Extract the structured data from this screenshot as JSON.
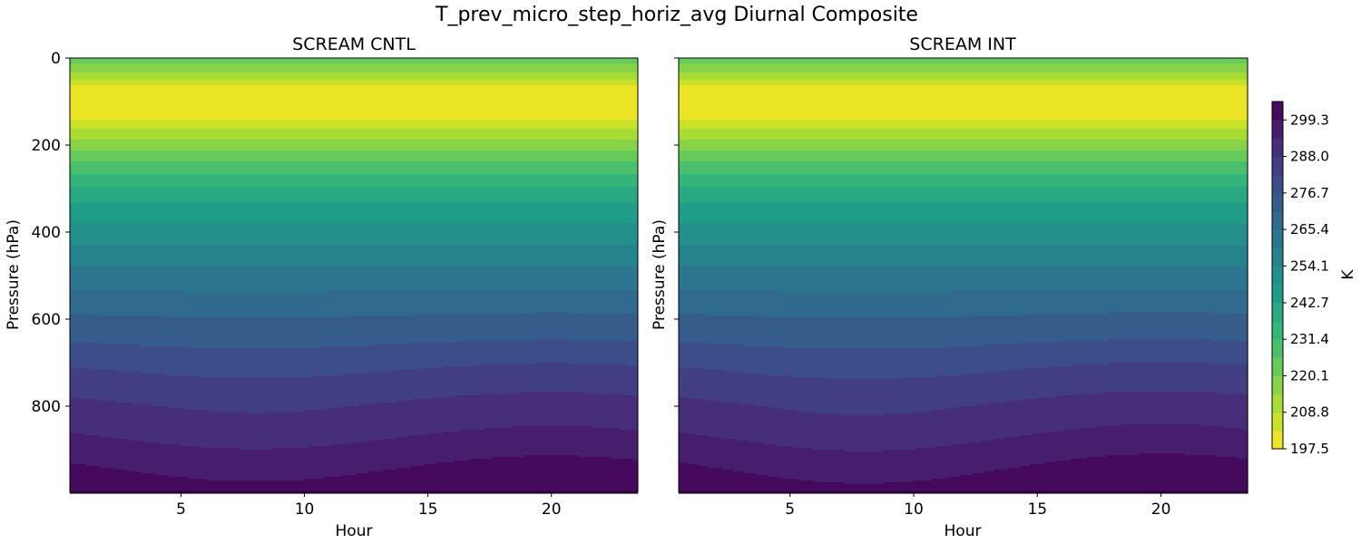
{
  "chart_data": {
    "type": "contourf",
    "title": "T_prev_micro_step_horiz_avg Diurnal Composite",
    "panels": [
      {
        "title": "SCREAM CNTL",
        "xlabel": "Hour",
        "ylabel": "Pressure (hPa)",
        "diurnal_scale": 1.0,
        "show_y_ticklabels": true
      },
      {
        "title": "SCREAM INT",
        "xlabel": "Hour",
        "ylabel": "Pressure (hPa)",
        "diurnal_scale": 1.15,
        "show_y_ticklabels": false
      }
    ],
    "xlim": [
      0.5,
      23.5
    ],
    "ylim": [
      998,
      0
    ],
    "xticks": [
      5,
      10,
      15,
      20
    ],
    "yticks": [
      0,
      200,
      400,
      600,
      800
    ],
    "pressure": [
      0,
      20,
      40,
      60,
      80,
      100,
      130,
      160,
      200,
      250,
      300,
      350,
      400,
      450,
      500,
      550,
      600,
      650,
      700,
      750,
      800,
      850,
      900,
      950,
      1000
    ],
    "mean_temperature": [
      224,
      218,
      212,
      204,
      199,
      198,
      200,
      208,
      218,
      228,
      238,
      245,
      251,
      256,
      262,
      267,
      272,
      276,
      281,
      285,
      289,
      292,
      296,
      300,
      304
    ],
    "diurnal_amplitude": [
      0,
      0,
      0,
      0,
      0,
      0,
      0,
      0,
      0,
      0,
      0,
      0,
      0,
      0,
      0,
      0.3,
      0.6,
      0.9,
      1.2,
      1.5,
      1.8,
      2.0,
      2.2,
      2.4,
      2.6
    ],
    "diurnal_peak_hour": 20,
    "colorbar": {
      "label": "K",
      "vmin": 197.5,
      "vmax": 305.0,
      "n_levels": 19,
      "ticks": [
        "197.5",
        "208.8",
        "220.1",
        "231.4",
        "242.7",
        "254.1",
        "265.4",
        "276.7",
        "288.0",
        "299.3"
      ]
    },
    "colormap": [
      "#fde725",
      "#b5de2b",
      "#6ece58",
      "#35b779",
      "#1f9e89",
      "#26828e",
      "#31688e",
      "#3e4989",
      "#482878",
      "#440154"
    ]
  }
}
